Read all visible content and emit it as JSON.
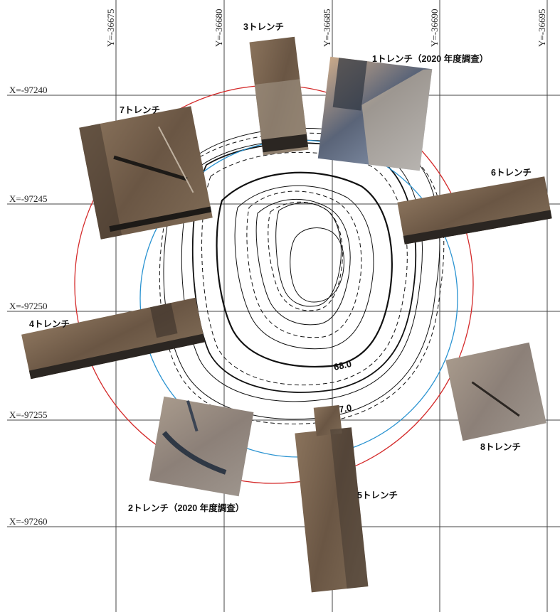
{
  "grid": {
    "x_lines": [
      {
        "label": "X=-97240"
      },
      {
        "label": "X=-97245"
      },
      {
        "label": "X=-97250"
      },
      {
        "label": "X=-97255"
      },
      {
        "label": "X=-97260"
      }
    ],
    "y_lines": [
      {
        "label": "Y=-36675"
      },
      {
        "label": "Y=-36680"
      },
      {
        "label": "Y=-36685"
      },
      {
        "label": "Y=-36690"
      },
      {
        "label": "Y=-36695"
      }
    ]
  },
  "contour_labels": [
    {
      "text": "68.0"
    },
    {
      "text": "67.0"
    }
  ],
  "trenches": [
    {
      "id": "t1",
      "label": "1トレンチ（2020 年度調査）"
    },
    {
      "id": "t2",
      "label": "2トレンチ（2020 年度調査）"
    },
    {
      "id": "t3",
      "label": "3トレンチ"
    },
    {
      "id": "t4",
      "label": "4トレンチ"
    },
    {
      "id": "t5",
      "label": "5トレンチ"
    },
    {
      "id": "t6",
      "label": "6トレンチ"
    },
    {
      "id": "t7",
      "label": "7トレンチ"
    },
    {
      "id": "t8",
      "label": "8トレンチ"
    }
  ],
  "colors": {
    "outer_circle": "#d42a2a",
    "inner_circle": "#2a93d1",
    "trench_soil": "#6d5a48",
    "trench_dark": "#2b2622",
    "grid": "#444444"
  }
}
